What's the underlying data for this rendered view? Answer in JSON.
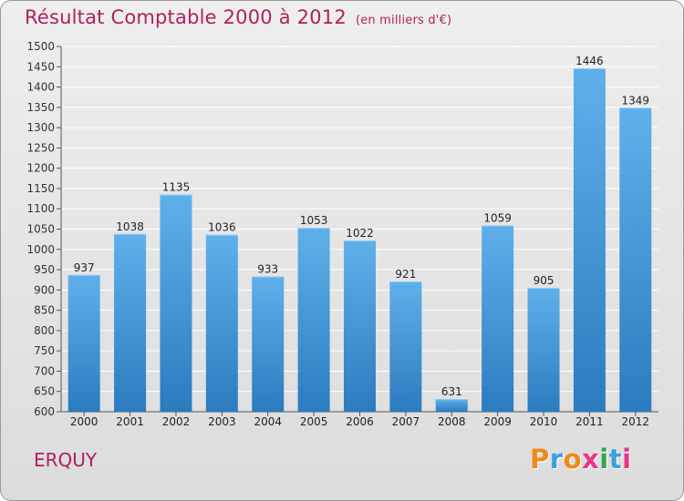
{
  "chart_data": {
    "type": "bar",
    "title": "Résultat Comptable 2000 à 2012",
    "subtitle": "(en milliers d'€)",
    "categories": [
      "2000",
      "2001",
      "2002",
      "2003",
      "2004",
      "2005",
      "2006",
      "2007",
      "2008",
      "2009",
      "2010",
      "2011",
      "2012"
    ],
    "values": [
      937,
      1038,
      1135,
      1036,
      933,
      1053,
      1022,
      921,
      631,
      1059,
      905,
      1446,
      1349
    ],
    "ylim": [
      600,
      1500
    ],
    "ystep": 50,
    "xlabel": "",
    "ylabel": "",
    "grid": true
  },
  "footer": {
    "town": "ERQUY",
    "logo_letters": [
      {
        "ch": "P",
        "color": "#f08a1c"
      },
      {
        "ch": "r",
        "color": "#3aa0e0"
      },
      {
        "ch": "o",
        "color": "#f08a1c"
      },
      {
        "ch": "x",
        "color": "#e8358c"
      },
      {
        "ch": "i",
        "color": "#2fa84f"
      },
      {
        "ch": "t",
        "color": "#3aa0e0"
      },
      {
        "ch": "i",
        "color": "#e8358c"
      }
    ]
  },
  "colors": {
    "title": "#b0205f",
    "bar_top": "#5fb0ea",
    "bar_bottom": "#2a7cbf"
  }
}
